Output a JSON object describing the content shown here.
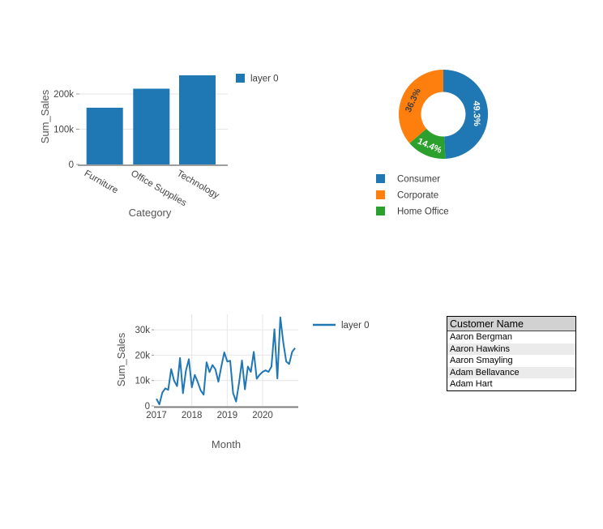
{
  "colors": {
    "blue": "#1f77b4",
    "orange": "#ff7f0e",
    "green": "#2ca02c",
    "tick_text": "#444444",
    "axis_title_text": "#555555",
    "legend_text": "#3d3d3d",
    "gridline": "#e6e6e6",
    "bar_axis_line": "#9e9e9e",
    "line_axis_line": "#7d7d7d",
    "table_header_bg": "#d2d2d2",
    "table_stripe_bg": "#ebebeb",
    "table_border": "#000000"
  },
  "chart_data": [
    {
      "type": "bar",
      "title": "",
      "categories": [
        "Furniture",
        "Office Supplies",
        "Technology"
      ],
      "values": [
        161000,
        215000,
        253000
      ],
      "xlabel": "Category",
      "ylabel": "Sum_Sales",
      "ylim": [
        0,
        260000
      ],
      "ytick_values": [
        0,
        100000,
        200000
      ],
      "ytick_labels": [
        "0",
        "100k",
        "200k"
      ],
      "bar_color": "#1f77b4",
      "grid": true,
      "legend_position": "top-right",
      "legend": [
        {
          "label": "layer 0",
          "color": "#1f77b4"
        }
      ]
    },
    {
      "type": "pie",
      "hole": 0.5,
      "direction": "clockwise",
      "start_angle_deg": 0,
      "slices": [
        {
          "label": "Consumer",
          "pct": 49.3,
          "pct_label": "49.3%",
          "color": "#1f77b4",
          "pct_label_color": "#ffffff"
        },
        {
          "label": "Home Office",
          "pct": 14.4,
          "pct_label": "14.4%",
          "color": "#2ca02c",
          "pct_label_color": "#ffffff"
        },
        {
          "label": "Corporate",
          "pct": 36.3,
          "pct_label": "36.3%",
          "color": "#ff7f0e",
          "pct_label_color": "#3f3f3f"
        }
      ],
      "legend_order": [
        "Consumer",
        "Corporate",
        "Home Office"
      ],
      "legend_position": "bottom-left"
    },
    {
      "type": "line",
      "xlabel": "Month",
      "ylabel": "Sum_Sales",
      "xtick_labels": [
        "2017",
        "2018",
        "2019",
        "2020"
      ],
      "ylim": [
        0,
        36000
      ],
      "ytick_values": [
        0,
        10000,
        20000,
        30000
      ],
      "ytick_labels": [
        "0",
        "10k",
        "20k",
        "30k"
      ],
      "grid": true,
      "legend_position": "top-right",
      "legend": [
        {
          "label": "layer 0",
          "color": "#1f77b4"
        }
      ],
      "line_color": "#1f77b4",
      "series": [
        {
          "name": "layer 0",
          "x_start": "2017-01",
          "x_step": "1 month",
          "values": [
            2800,
            600,
            5200,
            6900,
            6300,
            14500,
            9900,
            7800,
            18900,
            5000,
            13900,
            18400,
            7300,
            12200,
            9400,
            6100,
            4400,
            17200,
            13300,
            16100,
            14400,
            9500,
            15500,
            21100,
            17500,
            17800,
            5000,
            1700,
            9000,
            17900,
            6500,
            15500,
            13400,
            21300,
            10700,
            12300,
            13400,
            14000,
            13400,
            15500,
            30200,
            10800,
            34900,
            25000,
            17500,
            16500,
            21300,
            22800
          ]
        }
      ]
    }
  ],
  "table": {
    "header": "Customer Name",
    "rows": [
      "Aaron Bergman",
      "Aaron Hawkins",
      "Aaron Smayling",
      "Adam Bellavance",
      "Adam Hart"
    ]
  }
}
